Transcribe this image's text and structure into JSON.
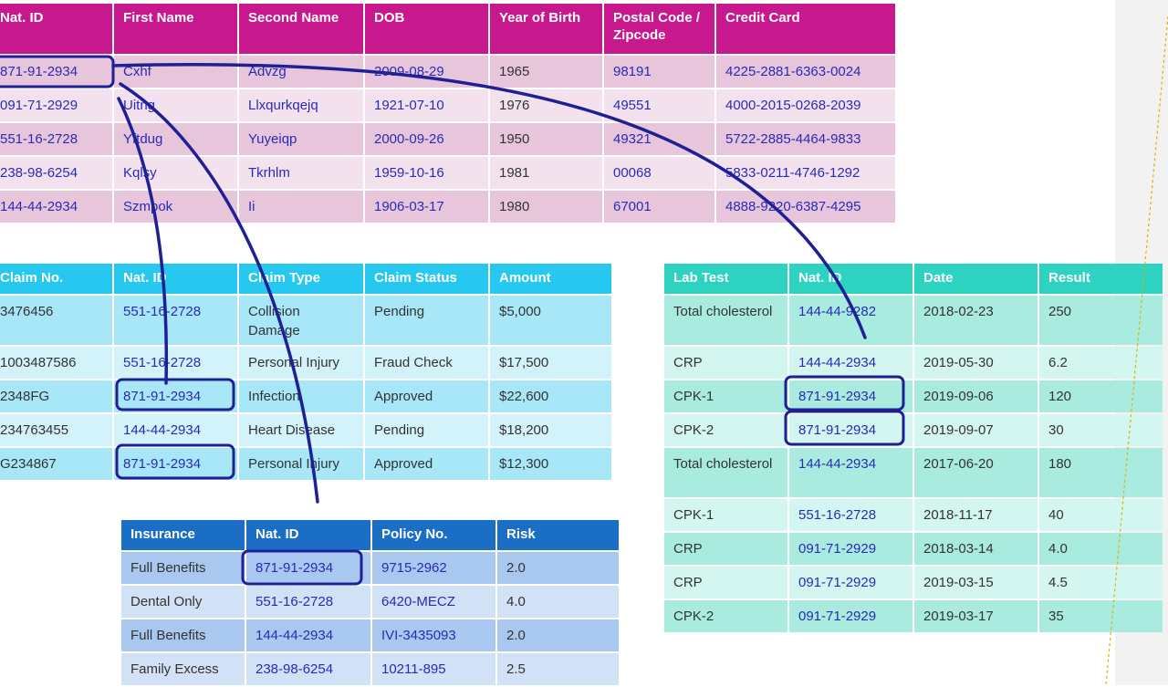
{
  "person_table": {
    "headers": [
      "Nat. ID",
      "First Name",
      "Second Name",
      "DOB",
      "Year of Birth",
      "Postal Code / Zipcode",
      "Credit Card"
    ],
    "rows": [
      [
        "871-91-2934",
        "Cxhf",
        "Advzg",
        "2009-08-29",
        "1965",
        "98191",
        "4225-2881-6363-0024"
      ],
      [
        "091-71-2929",
        "Uitng",
        "Llxqurkqejq",
        "1921-07-10",
        "1976",
        "49551",
        "4000-2015-0268-2039"
      ],
      [
        "551-16-2728",
        "Yftdug",
        "Yuyeiqp",
        "2000-09-26",
        "1950",
        "49321",
        "5722-2885-4464-9833"
      ],
      [
        "238-98-6254",
        "Kqlsy",
        "Tkrhlm",
        "1959-10-16",
        "1981",
        "00068",
        "5833-0211-4746-1292"
      ],
      [
        "144-44-2934",
        "Szmpok",
        "Ii",
        "1906-03-17",
        "1980",
        "67001",
        "4888-9220-6387-4295"
      ]
    ]
  },
  "claims_table": {
    "headers": [
      "Claim No.",
      "Nat. ID",
      "Claim Type",
      "Claim Status",
      "Amount"
    ],
    "rows": [
      [
        "3476456",
        "551-16-2728",
        "Collision Damage",
        "Pending",
        "$5,000"
      ],
      [
        "1003487586",
        "551-16-2728",
        "Personal Injury",
        "Fraud Check",
        "$17,500"
      ],
      [
        "2348FG",
        "871-91-2934",
        "Infection",
        "Approved",
        "$22,600"
      ],
      [
        "234763455",
        "144-44-2934",
        "Heart Disease",
        "Pending",
        "$18,200"
      ],
      [
        "G234867",
        "871-91-2934",
        "Personal Injury",
        "Approved",
        "$12,300"
      ]
    ]
  },
  "lab_table": {
    "headers": [
      "Lab Test",
      "Nat. ID",
      "Date",
      "Result"
    ],
    "rows": [
      [
        "Total cholesterol",
        "144-44-9282",
        "2018-02-23",
        "250"
      ],
      [
        "CRP",
        "144-44-2934",
        "2019-05-30",
        "6.2"
      ],
      [
        "CPK-1",
        "871-91-2934",
        "2019-09-06",
        "120"
      ],
      [
        "CPK-2",
        "871-91-2934",
        "2019-09-07",
        "30"
      ],
      [
        "Total cholesterol",
        "144-44-2934",
        "2017-06-20",
        "180"
      ],
      [
        "CPK-1",
        "551-16-2728",
        "2018-11-17",
        "40"
      ],
      [
        "CRP",
        "091-71-2929",
        "2018-03-14",
        "4.0"
      ],
      [
        "CRP",
        "091-71-2929",
        "2019-03-15",
        "4.5"
      ],
      [
        "CPK-2",
        "091-71-2929",
        "2019-03-17",
        "35"
      ]
    ]
  },
  "insurance_table": {
    "headers": [
      "Insurance",
      "Nat. ID",
      "Policy No.",
      "Risk"
    ],
    "rows": [
      [
        "Full Benefits",
        "871-91-2934",
        "9715-2962",
        "2.0"
      ],
      [
        "Dental Only",
        "551-16-2728",
        "6420-MECZ",
        "4.0"
      ],
      [
        "Full Benefits",
        "144-44-2934",
        "IVI-3435093",
        "2.0"
      ],
      [
        "Family Excess",
        "238-98-6254",
        "10211-895",
        "2.5"
      ]
    ]
  },
  "colors": {
    "person_header": "#c8188e",
    "claims_header": "#27c8f0",
    "lab_header": "#2ed2c0",
    "insurance_header": "#1b6ec6",
    "link_stroke": "#1f1f96",
    "guide_line": "#d8b400"
  }
}
